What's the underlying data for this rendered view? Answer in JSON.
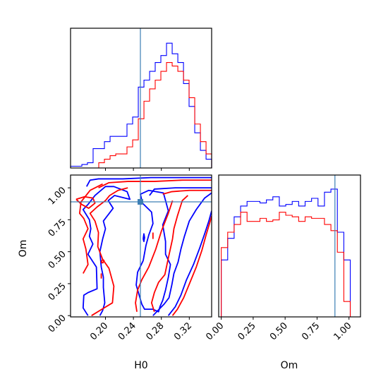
{
  "chart_data": {
    "type": "corner",
    "parameters": [
      "H0",
      "Om"
    ],
    "truths": {
      "H0": 0.25,
      "Om": 0.89
    },
    "colors": {
      "series_a": "#0000ff",
      "series_b": "#ff0000",
      "truth": "#3d7fb5"
    },
    "series": [
      {
        "color": "blue"
      },
      {
        "color": "red"
      }
    ],
    "panels": [
      {
        "id": "hist-H0",
        "type": "histogram",
        "xlim": [
          0.15,
          0.352
        ],
        "bin_edges": [
          0.15,
          0.1581,
          0.1662,
          0.1742,
          0.1823,
          0.1904,
          0.1985,
          0.2066,
          0.2147,
          0.2227,
          0.2308,
          0.2389,
          0.247,
          0.2551,
          0.2632,
          0.2712,
          0.2793,
          0.2874,
          0.2955,
          0.3036,
          0.3117,
          0.3197,
          0.3278,
          0.3359,
          0.344,
          0.352
        ],
        "counts": {
          "blue": [
            1,
            1,
            2,
            3,
            11,
            11,
            15,
            18,
            18,
            18,
            25,
            29,
            46,
            50,
            55,
            60,
            64,
            71,
            65,
            60,
            48,
            35,
            20,
            10,
            5
          ],
          "red": [
            0,
            0,
            0,
            0,
            0,
            3,
            5,
            7,
            8,
            8,
            12,
            16,
            28,
            38,
            45,
            50,
            55,
            60,
            58,
            55,
            50,
            40,
            25,
            15,
            8
          ]
        },
        "xticks": [
          0.2,
          0.24,
          0.28,
          0.32
        ]
      },
      {
        "id": "contour-H0-Om",
        "type": "contour",
        "xlim": [
          0.15,
          0.352
        ],
        "ylim": [
          -0.01,
          1.1
        ],
        "xticks": [
          "0.20",
          "0.24",
          "0.28",
          "0.32"
        ],
        "yticks": [
          "0.00",
          "0.25",
          "0.50",
          "0.75",
          "1.00"
        ],
        "xlabel": "H0",
        "ylabel": "Om",
        "blue_contours": [
          [
            [
              0.173,
              1.01
            ],
            [
              0.178,
              1.06
            ],
            [
              0.19,
              1.07
            ],
            [
              0.225,
              1.07
            ],
            [
              0.265,
              1.08
            ],
            [
              0.305,
              1.08
            ],
            [
              0.352,
              1.08
            ]
          ],
          [
            [
              0.263,
              0.94
            ],
            [
              0.27,
              0.99
            ],
            [
              0.3,
              1.0
            ],
            [
              0.352,
              1.0
            ]
          ],
          [
            [
              0.254,
              0.43
            ],
            [
              0.246,
              0.34
            ],
            [
              0.244,
              0.24
            ],
            [
              0.252,
              0.09
            ],
            [
              0.256,
              0.05
            ],
            [
              0.268,
              0.05
            ],
            [
              0.276,
              0.03
            ],
            [
              0.278,
              0.07
            ],
            [
              0.282,
              0.12
            ],
            [
              0.286,
              0.2
            ],
            [
              0.29,
              0.3
            ],
            [
              0.293,
              0.4
            ],
            [
              0.286,
              0.48
            ],
            [
              0.286,
              0.58
            ],
            [
              0.282,
              0.71
            ],
            [
              0.29,
              0.82
            ],
            [
              0.283,
              0.96
            ],
            [
              0.262,
              0.98
            ],
            [
              0.25,
              0.95
            ],
            [
              0.253,
              0.88
            ],
            [
              0.266,
              0.81
            ],
            [
              0.268,
              0.72
            ],
            [
              0.262,
              0.63
            ],
            [
              0.258,
              0.55
            ],
            [
              0.254,
              0.43
            ]
          ],
          [
            [
              0.268,
              0.0
            ],
            [
              0.275,
              0.04
            ],
            [
              0.284,
              0.09
            ],
            [
              0.291,
              0.14
            ],
            [
              0.295,
              0.24
            ],
            [
              0.298,
              0.33
            ],
            [
              0.304,
              0.42
            ],
            [
              0.308,
              0.52
            ],
            [
              0.313,
              0.62
            ],
            [
              0.32,
              0.74
            ],
            [
              0.33,
              0.83
            ],
            [
              0.342,
              0.92
            ],
            [
              0.352,
              0.96
            ]
          ],
          [
            [
              0.29,
              0.0
            ],
            [
              0.3,
              0.07
            ],
            [
              0.308,
              0.16
            ],
            [
              0.316,
              0.28
            ],
            [
              0.326,
              0.4
            ],
            [
              0.335,
              0.53
            ],
            [
              0.342,
              0.64
            ],
            [
              0.348,
              0.74
            ],
            [
              0.352,
              0.82
            ]
          ],
          [
            [
              0.254,
              0.6
            ],
            [
              0.255,
              0.64
            ],
            [
              0.256,
              0.61
            ],
            [
              0.255,
              0.58
            ],
            [
              0.254,
              0.6
            ]
          ],
          [
            [
              0.175,
              0.0
            ],
            [
              0.168,
              0.06
            ],
            [
              0.169,
              0.16
            ],
            [
              0.175,
              0.18
            ],
            [
              0.188,
              0.21
            ],
            [
              0.187,
              0.38
            ],
            [
              0.175,
              0.48
            ],
            [
              0.182,
              0.56
            ],
            [
              0.177,
              0.62
            ],
            [
              0.179,
              0.68
            ],
            [
              0.177,
              0.75
            ],
            [
              0.168,
              0.83
            ],
            [
              0.175,
              0.87
            ],
            [
              0.185,
              0.94
            ],
            [
              0.2,
              1.01
            ],
            [
              0.212,
              1.01
            ],
            [
              0.231,
              0.97
            ],
            [
              0.235,
              0.91
            ],
            [
              0.213,
              0.94
            ],
            [
              0.204,
              0.9
            ],
            [
              0.211,
              0.84
            ],
            [
              0.197,
              0.74
            ],
            [
              0.2,
              0.68
            ],
            [
              0.196,
              0.6
            ],
            [
              0.192,
              0.5
            ],
            [
              0.194,
              0.38
            ],
            [
              0.197,
              0.3
            ],
            [
              0.197,
              0.22
            ],
            [
              0.199,
              0.1
            ],
            [
              0.196,
              0.04
            ],
            [
              0.192,
              0.0
            ]
          ]
        ],
        "red_contours": [
          [
            [
              0.19,
              1.0
            ],
            [
              0.205,
              1.04
            ],
            [
              0.232,
              1.05
            ],
            [
              0.27,
              1.05
            ],
            [
              0.31,
              1.06
            ],
            [
              0.352,
              1.06
            ]
          ],
          [
            [
              0.282,
              0.95
            ],
            [
              0.295,
              0.97
            ],
            [
              0.32,
              0.98
            ],
            [
              0.352,
              0.98
            ]
          ],
          [
            [
              0.158,
              0.91
            ],
            [
              0.166,
              0.87
            ],
            [
              0.176,
              0.84
            ],
            [
              0.185,
              0.88
            ],
            [
              0.182,
              0.92
            ],
            [
              0.17,
              0.93
            ],
            [
              0.158,
              0.91
            ]
          ],
          [
            [
              0.18,
              0.0
            ],
            [
              0.195,
              0.05
            ],
            [
              0.21,
              0.1
            ],
            [
              0.212,
              0.23
            ],
            [
              0.205,
              0.37
            ],
            [
              0.196,
              0.44
            ],
            [
              0.189,
              0.54
            ],
            [
              0.19,
              0.65
            ],
            [
              0.185,
              0.74
            ],
            [
              0.178,
              0.8
            ],
            [
              0.188,
              0.85
            ],
            [
              0.2,
              0.9
            ],
            [
              0.206,
              0.94
            ],
            [
              0.218,
              0.98
            ],
            [
              0.232,
              1.0
            ]
          ],
          [
            [
              0.168,
              0.33
            ],
            [
              0.175,
              0.4
            ],
            [
              0.172,
              0.52
            ],
            [
              0.168,
              0.6
            ],
            [
              0.175,
              0.68
            ],
            [
              0.169,
              0.76
            ],
            [
              0.163,
              0.8
            ],
            [
              0.165,
              0.89
            ],
            [
              0.178,
              0.98
            ],
            [
              0.196,
              1.03
            ]
          ],
          [
            [
              0.27,
              0.03
            ],
            [
              0.266,
              0.1
            ],
            [
              0.27,
              0.18
            ],
            [
              0.276,
              0.26
            ],
            [
              0.285,
              0.32
            ],
            [
              0.29,
              0.45
            ],
            [
              0.296,
              0.6
            ],
            [
              0.298,
              0.68
            ],
            [
              0.303,
              0.78
            ],
            [
              0.31,
              0.9
            ],
            [
              0.318,
              0.94
            ]
          ],
          [
            [
              0.245,
              0.03
            ],
            [
              0.243,
              0.1
            ],
            [
              0.246,
              0.2
            ],
            [
              0.252,
              0.28
            ],
            [
              0.262,
              0.38
            ],
            [
              0.272,
              0.52
            ],
            [
              0.28,
              0.66
            ],
            [
              0.29,
              0.8
            ],
            [
              0.296,
              0.9
            ]
          ],
          [
            [
              0.296,
              0.0
            ],
            [
              0.303,
              0.05
            ],
            [
              0.312,
              0.14
            ],
            [
              0.321,
              0.26
            ],
            [
              0.33,
              0.38
            ],
            [
              0.338,
              0.51
            ],
            [
              0.344,
              0.63
            ],
            [
              0.35,
              0.74
            ],
            [
              0.352,
              0.78
            ]
          ],
          [
            [
              0.194,
              0.29
            ],
            [
              0.194,
              0.33
            ]
          ],
          [
            [
              0.196,
              0.41
            ],
            [
              0.198,
              0.43
            ],
            [
              0.196,
              0.44
            ],
            [
              0.194,
              0.42
            ],
            [
              0.196,
              0.41
            ]
          ],
          [
            [
              0.268,
              0.6
            ],
            [
              0.268,
              0.65
            ]
          ]
        ]
      },
      {
        "id": "hist-Om",
        "type": "histogram",
        "xlim": [
          -0.02,
          1.09
        ],
        "bin_edges": [
          0.0,
          0.0505,
          0.101,
          0.1515,
          0.202,
          0.2525,
          0.303,
          0.3535,
          0.404,
          0.4545,
          0.505,
          0.5555,
          0.606,
          0.6565,
          0.707,
          0.7575,
          0.808,
          0.8585,
          0.909,
          0.9595,
          1.01
        ],
        "counts": {
          "blue": [
            37,
            51,
            65,
            72,
            75,
            75,
            74,
            76,
            78,
            72,
            73,
            75,
            72,
            75,
            77,
            72,
            81,
            83,
            55,
            37
          ],
          "red": [
            45,
            55,
            60,
            68,
            62,
            62,
            64,
            62,
            63,
            68,
            66,
            65,
            62,
            65,
            64,
            64,
            60,
            56,
            42,
            10
          ]
        },
        "xticks": [
          "0.00",
          "0.25",
          "0.50",
          "0.75",
          "1.00"
        ],
        "xlabel": "Om"
      }
    ]
  }
}
